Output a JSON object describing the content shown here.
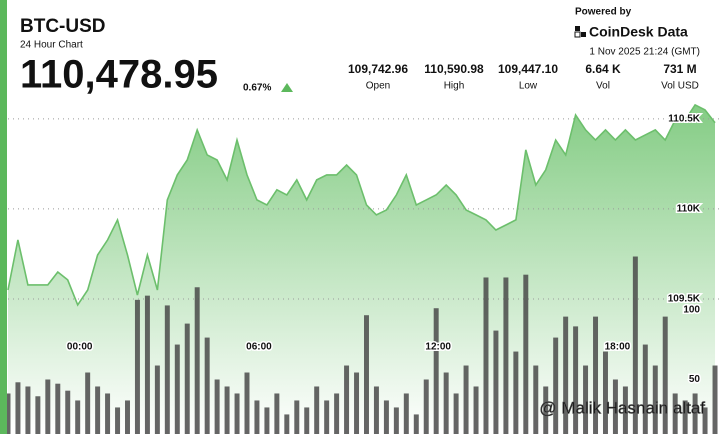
{
  "header": {
    "symbol": "BTC-USD",
    "subtitle": "24 Hour Chart",
    "price": "110,478.95",
    "change": "0.67%",
    "stats": [
      {
        "value": "109,742.96",
        "label": "Open"
      },
      {
        "value": "110,590.98",
        "label": "High"
      },
      {
        "value": "109,447.10",
        "label": "Low"
      },
      {
        "value": "6.64 K",
        "label": "Vol"
      },
      {
        "value": "731 M",
        "label": "Vol USD"
      }
    ],
    "powered": "Powered by",
    "brand": "CoinDesk Data",
    "timestamp": "1 Nov 2025 21:24 (GMT)",
    "watermark": "@ Malik Hasnain altaf"
  },
  "chart_data": {
    "type": "line",
    "x": [
      -2.4,
      -2.067,
      -1.733,
      -1.4,
      -1.067,
      -0.733,
      -0.4,
      -0.067,
      0.267,
      0.6,
      0.933,
      1.267,
      1.6,
      1.933,
      2.267,
      2.6,
      2.933,
      3.267,
      3.6,
      3.933,
      4.267,
      4.6,
      4.933,
      5.267,
      5.6,
      5.933,
      6.267,
      6.6,
      6.933,
      7.267,
      7.6,
      7.933,
      8.267,
      8.6,
      8.933,
      9.267,
      9.6,
      9.933,
      10.267,
      10.6,
      10.933,
      11.267,
      11.6,
      11.933,
      12.267,
      12.6,
      12.933,
      13.267,
      13.6,
      13.933,
      14.267,
      14.6,
      14.933,
      15.267,
      15.6,
      15.933,
      16.267,
      16.6,
      16.933,
      17.267,
      17.6,
      17.933,
      18.267,
      18.6,
      18.933,
      19.267,
      19.6,
      19.933,
      20.267,
      20.6,
      20.933,
      21.267
    ],
    "xlim": [
      -2.4,
      21.4
    ],
    "xticks": [
      {
        "value": 0,
        "label": "00:00"
      },
      {
        "value": 6,
        "label": "06:00"
      },
      {
        "value": 12,
        "label": "12:00"
      },
      {
        "value": 18,
        "label": "18:00"
      }
    ],
    "ylim": [
      108750,
      110605
    ],
    "yticks": [
      {
        "value": 109500,
        "label": "109.5K"
      },
      {
        "value": 110000,
        "label": "110K"
      },
      {
        "value": 110500,
        "label": "110.5K"
      }
    ],
    "y2lim": [
      11,
      250
    ],
    "y2ticks": [
      50,
      100
    ],
    "grid": true,
    "series": [
      {
        "color": "#6cbf6c",
        "values": [
          109550,
          109828,
          109578,
          109578,
          109578,
          109650,
          109606,
          109467,
          109550,
          109744,
          109828,
          109939,
          109744,
          109522,
          109744,
          109550,
          110050,
          110189,
          110272,
          110439,
          110300,
          110272,
          110161,
          110383,
          110189,
          110050,
          110022,
          110106,
          110078,
          110161,
          110050,
          110161,
          110189,
          110189,
          110244,
          110189,
          110022,
          109967,
          109994,
          110078,
          110189,
          110022,
          110050,
          110078,
          110133,
          110078,
          109994,
          109967,
          109939,
          109883,
          109911,
          109939,
          110328,
          110133,
          110217,
          110383,
          110300,
          110522,
          110439,
          110383,
          110439,
          110383,
          110439,
          110383,
          110411,
          110439,
          110383,
          110494,
          110494,
          110578,
          110550,
          110479
        ]
      },
      {
        "color": "#4a4a4a",
        "axis": "y2",
        "type": "bar",
        "values": [
          40,
          48,
          45,
          38,
          50,
          47,
          42,
          35,
          55,
          45,
          40,
          30,
          35,
          107,
          110,
          60,
          103,
          75,
          90,
          116,
          80,
          50,
          45,
          40,
          55,
          35,
          30,
          40,
          25,
          35,
          30,
          45,
          35,
          40,
          60,
          55,
          96,
          45,
          35,
          30,
          40,
          25,
          50,
          101,
          55,
          40,
          60,
          45,
          123,
          85,
          123,
          70,
          125,
          60,
          45,
          80,
          95,
          88,
          60,
          95,
          70,
          50,
          45,
          138,
          75,
          60,
          95,
          40,
          35,
          40,
          30,
          60
        ]
      }
    ]
  }
}
